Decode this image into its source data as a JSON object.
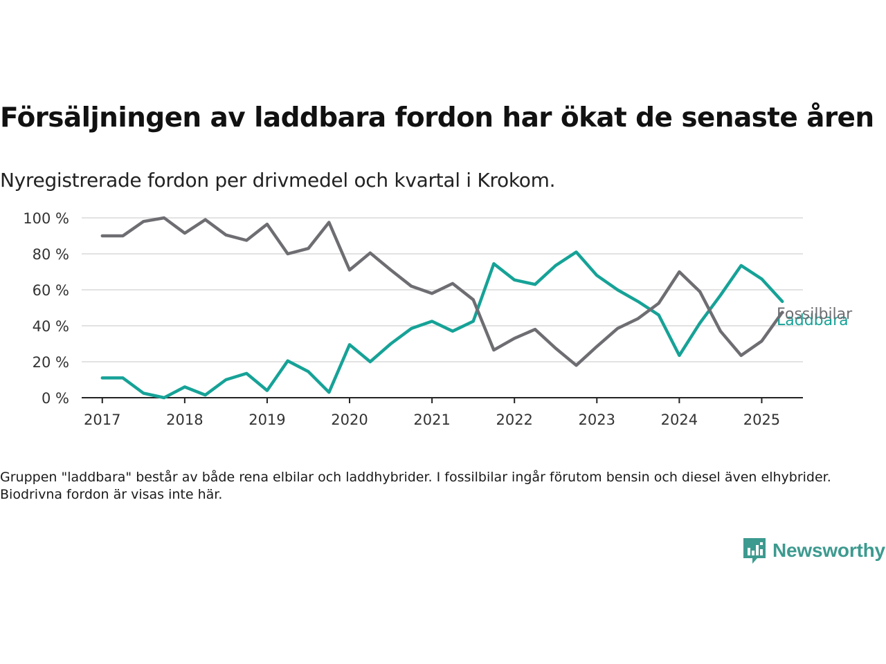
{
  "title": "Försäljningen av laddbara fordon har ökat de senaste åren",
  "subtitle": "Nyregistrerade fordon per drivmedel och kvartal i Krokom.",
  "note": "Gruppen \"laddbara\" består av både rena elbilar och laddhybrider. I fossilbilar ingår förutom bensin och diesel även elhybrider. Biodrivna fordon är visas inte här.",
  "brand": {
    "name": "Newsworthy",
    "icon": "newsworthy-logo-icon",
    "color": "#3d9a8f"
  },
  "chart_data": {
    "type": "line",
    "title": "",
    "xlabel": "",
    "ylabel": "",
    "ylim": [
      0,
      100
    ],
    "xlim": [
      2016.75,
      2025.5
    ],
    "y_ticks": [
      0,
      20,
      40,
      60,
      80,
      100
    ],
    "y_tick_labels": [
      "0 %",
      "20 %",
      "40 %",
      "60 %",
      "80 %",
      "100 %"
    ],
    "x_ticks": [
      2017,
      2018,
      2019,
      2020,
      2021,
      2022,
      2023,
      2024,
      2025
    ],
    "x_tick_labels": [
      "2017",
      "2018",
      "2019",
      "2020",
      "2021",
      "2022",
      "2023",
      "2024",
      "2025"
    ],
    "grid": true,
    "legend": "direct labels at line ends",
    "x": [
      2017.0,
      2017.25,
      2017.5,
      2017.75,
      2018.0,
      2018.25,
      2018.5,
      2018.75,
      2019.0,
      2019.25,
      2019.5,
      2019.75,
      2020.0,
      2020.25,
      2020.5,
      2020.75,
      2021.0,
      2021.25,
      2021.5,
      2021.75,
      2022.0,
      2022.25,
      2022.5,
      2022.75,
      2023.0,
      2023.25,
      2023.5,
      2023.75,
      2024.0,
      2024.25,
      2024.5,
      2024.75,
      2025.0,
      2025.25
    ],
    "series": [
      {
        "name": "Fossilbilar",
        "color": "#6e6d72",
        "values": [
          90,
          90,
          98,
          100,
          91.5,
          99,
          90.5,
          87.5,
          96.5,
          80,
          83,
          97.5,
          71,
          80.5,
          71,
          62,
          58,
          63.5,
          54.5,
          26.5,
          33,
          38,
          27.5,
          18,
          28.5,
          38.5,
          44,
          52.5,
          70,
          59,
          37,
          23.5,
          31.5,
          47.5
        ]
      },
      {
        "name": "Laddbara",
        "color": "#16a297",
        "values": [
          11,
          11,
          2.5,
          0,
          6,
          1.5,
          10,
          13.5,
          4,
          20.5,
          14.5,
          3,
          29.5,
          20,
          30,
          38.5,
          42.5,
          37,
          42.5,
          74.5,
          65.5,
          63,
          73.5,
          81,
          68,
          60,
          53.5,
          46,
          23.5,
          41.5,
          57,
          73.5,
          66,
          53.5
        ]
      }
    ]
  }
}
